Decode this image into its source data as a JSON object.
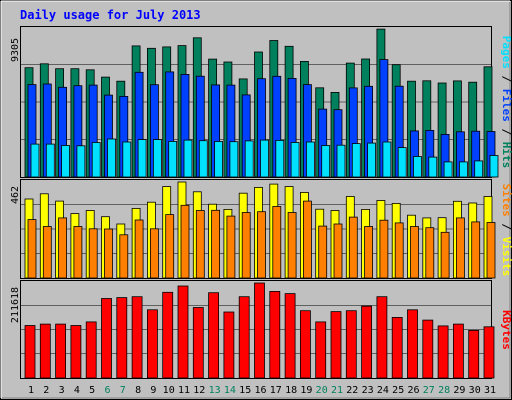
{
  "title": "Daily usage for July 2013",
  "colors": {
    "frame_bg": "#c0c0c0",
    "plot_bg": "#c0c0c0",
    "title": "#0000ff",
    "hits": "#00805c",
    "files": "#0040ff",
    "pages": "#00e0ff",
    "visits": "#ffff00",
    "sites": "#ff8000",
    "kbytes": "#ff0000",
    "weekend_day": "#00805c",
    "weekday": "#000000"
  },
  "legends": {
    "top": [
      {
        "text": "Pages",
        "color": "#00e0ff"
      },
      {
        "text": "Files",
        "color": "#0040ff"
      },
      {
        "text": "Hits",
        "color": "#00805c"
      }
    ],
    "middle": [
      {
        "text": "Sites",
        "color": "#ff8000"
      },
      {
        "text": "Visits",
        "color": "#ffff00"
      }
    ],
    "bottom": [
      {
        "text": "KBytes",
        "color": "#ff0000"
      }
    ]
  },
  "chart_data": [
    {
      "type": "bar",
      "axis_label": "9305",
      "ylim": [
        0,
        9305
      ],
      "categories": [
        "1",
        "2",
        "3",
        "4",
        "5",
        "6",
        "7",
        "8",
        "9",
        "10",
        "11",
        "12",
        "13",
        "14",
        "15",
        "16",
        "17",
        "18",
        "19",
        "20",
        "21",
        "22",
        "23",
        "24",
        "25",
        "26",
        "27",
        "28",
        "29",
        "30",
        "31"
      ],
      "weekend_days": [
        "6",
        "7",
        "13",
        "14",
        "20",
        "21",
        "27",
        "28"
      ],
      "series": [
        {
          "name": "Hits",
          "values": [
            6870,
            7120,
            6810,
            6810,
            6740,
            6280,
            6020,
            8240,
            8090,
            8180,
            8260,
            8750,
            7410,
            7230,
            6170,
            7860,
            8580,
            8220,
            7270,
            5610,
            5320,
            7160,
            7420,
            9300,
            7060,
            6020,
            6050,
            5910,
            6040,
            5960,
            6930
          ]
        },
        {
          "name": "Files",
          "values": [
            5810,
            5850,
            5640,
            5740,
            5780,
            5150,
            5070,
            6580,
            5800,
            6610,
            6450,
            6340,
            5790,
            5780,
            5160,
            6180,
            6330,
            6200,
            5810,
            4270,
            4230,
            5600,
            5700,
            7380,
            5710,
            2900,
            2930,
            2680,
            2840,
            2880,
            2860
          ]
        },
        {
          "name": "Pages",
          "values": [
            2070,
            2070,
            1980,
            1960,
            2170,
            2390,
            2200,
            2350,
            2350,
            2240,
            2320,
            2280,
            2230,
            2220,
            2270,
            2320,
            2300,
            2170,
            2200,
            1980,
            2000,
            2100,
            2130,
            2200,
            1850,
            1290,
            1250,
            950,
            950,
            1010,
            1350
          ]
        }
      ]
    },
    {
      "type": "bar",
      "axis_label": "462",
      "ylim": [
        0,
        462
      ],
      "categories": [
        "1",
        "2",
        "3",
        "4",
        "5",
        "6",
        "7",
        "8",
        "9",
        "10",
        "11",
        "12",
        "13",
        "14",
        "15",
        "16",
        "17",
        "18",
        "19",
        "20",
        "21",
        "22",
        "23",
        "24",
        "25",
        "26",
        "27",
        "28",
        "29",
        "30",
        "31"
      ],
      "weekend_days": [
        "6",
        "7",
        "13",
        "14",
        "20",
        "21",
        "27",
        "28"
      ],
      "series": [
        {
          "name": "Visits",
          "values": [
            380,
            405,
            370,
            310,
            325,
            295,
            260,
            335,
            365,
            440,
            462,
            415,
            355,
            330,
            408,
            436,
            452,
            440,
            412,
            331,
            325,
            392,
            330,
            373,
            359,
            302,
            289,
            290,
            369,
            361,
            392
          ]
        },
        {
          "name": "Sites",
          "values": [
            281,
            248,
            289,
            248,
            237,
            236,
            208,
            279,
            237,
            305,
            350,
            325,
            326,
            298,
            315,
            319,
            344,
            315,
            370,
            250,
            260,
            293,
            248,
            278,
            265,
            248,
            242,
            220,
            289,
            270,
            267
          ]
        }
      ]
    },
    {
      "type": "bar",
      "axis_label": "211618",
      "ylim": [
        0,
        211618
      ],
      "categories": [
        "1",
        "2",
        "3",
        "4",
        "5",
        "6",
        "7",
        "8",
        "9",
        "10",
        "11",
        "12",
        "13",
        "14",
        "15",
        "16",
        "17",
        "18",
        "19",
        "20",
        "21",
        "22",
        "23",
        "24",
        "25",
        "26",
        "27",
        "28",
        "29",
        "30",
        "31"
      ],
      "weekend_days": [
        "6",
        "7",
        "13",
        "14",
        "20",
        "21",
        "27",
        "28"
      ],
      "series": [
        {
          "name": "KBytes",
          "values": [
            117000,
            120000,
            120000,
            117000,
            125000,
            177000,
            179000,
            181000,
            152000,
            191000,
            205000,
            157000,
            190000,
            147000,
            181000,
            211618,
            193000,
            188000,
            150000,
            125000,
            148000,
            150000,
            160000,
            181000,
            135000,
            152000,
            129000,
            116000,
            120000,
            106000,
            114000
          ]
        }
      ]
    }
  ]
}
